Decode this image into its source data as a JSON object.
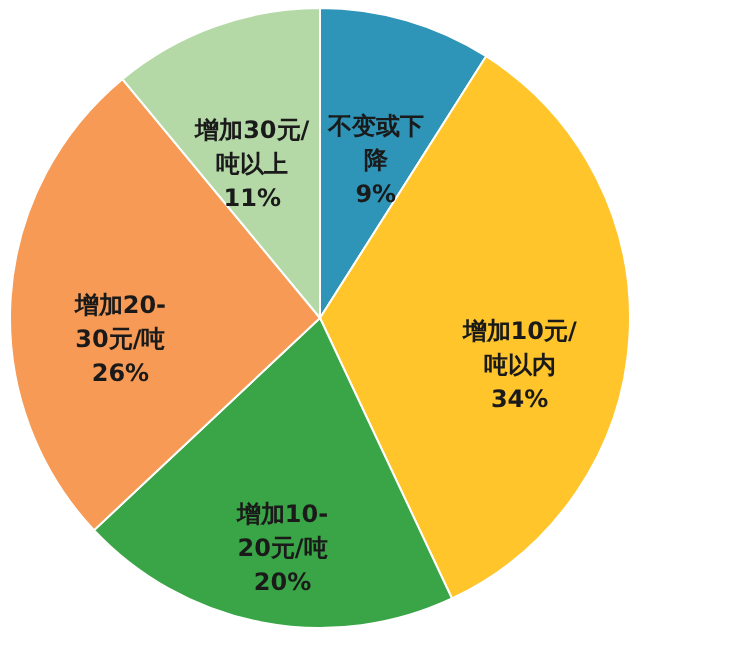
{
  "chart_data": {
    "type": "pie",
    "categories": [
      "不变或下降",
      "增加10元/吨以内",
      "增加10-20元/吨",
      "增加20-30元/吨",
      "增加30元/吨以上"
    ],
    "values": [
      9,
      34,
      20,
      26,
      11
    ],
    "value_labels": [
      "9%",
      "34%",
      "20%",
      "26%",
      "11%"
    ],
    "colors": [
      "#2e95b8",
      "#ffc52b",
      "#3aa546",
      "#f79a55",
      "#b4d9a6"
    ],
    "legend": false
  }
}
